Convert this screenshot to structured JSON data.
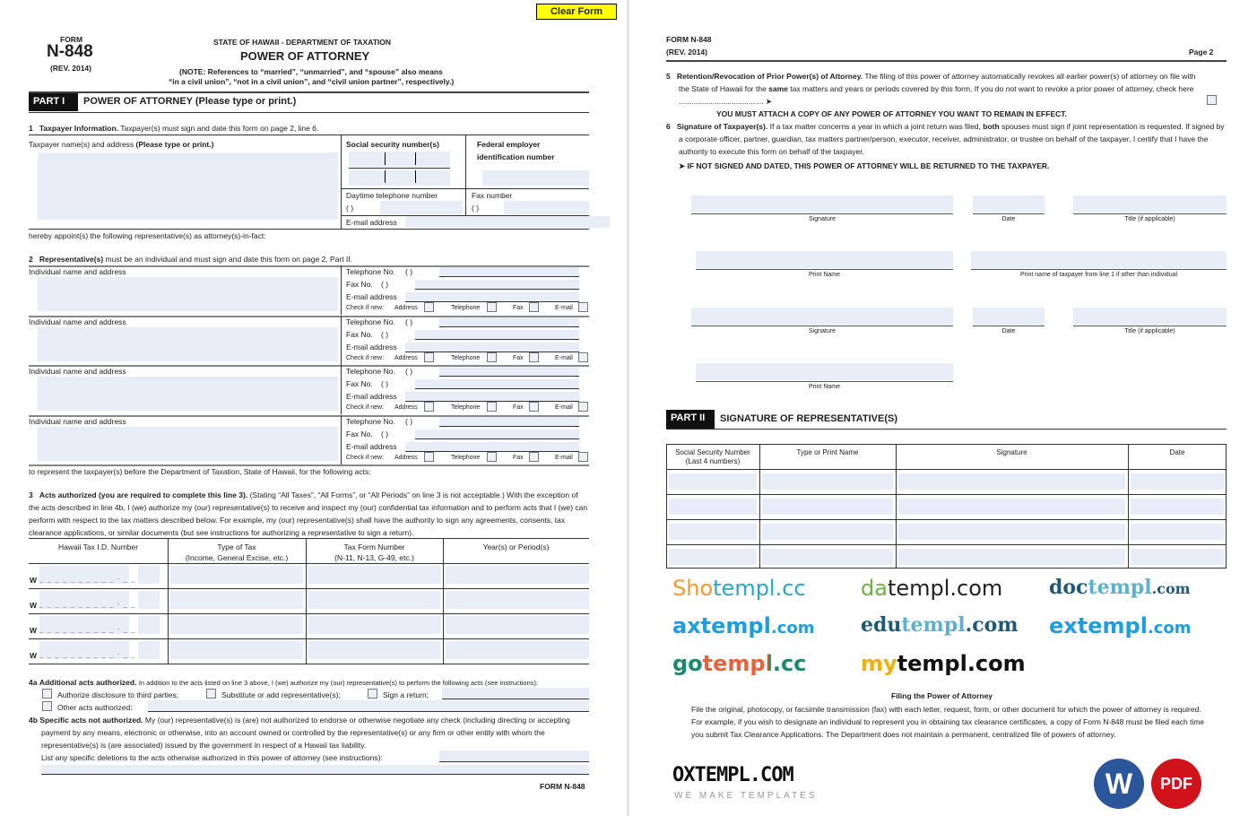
{
  "clear_form_label": "Clear Form",
  "page1": {
    "form_label": "FORM",
    "form_number": "N-848",
    "rev": "(REV. 2014)",
    "agency": "STATE OF HAWAII - DEPARTMENT OF TAXATION",
    "title": "POWER OF ATTORNEY",
    "note_line1": "(NOTE: References to “married”, “unmarried”, and “spouse” also means",
    "note_line2": "“in a civil union”, “not in a civil union”, and “civil union partner”, respectively.)",
    "part1_tag": "PART I",
    "part1_title": "POWER OF ATTORNEY (Please type or print.)",
    "line1_num": "1",
    "line1_bold": "Taxpayer Information.",
    "line1_text": "Taxpayer(s) must sign and date this form on page 2, line 6.",
    "taxpayer_name_label": "Taxpayer name(s) and address",
    "taxpayer_name_bold": "(Please type or print.)",
    "ssn_label": "Social security number(s)",
    "fein_label_1": "Federal employer",
    "fein_label_2": "identification number",
    "phone_label": "Daytime telephone number",
    "fax_label": "Fax number",
    "email_label": "E-mail address",
    "paren": "(        )",
    "appoint_text": "hereby appoint(s) the following representative(s) as attorney(s)-in-fact:",
    "line2_num": "2",
    "line2_bold": "Representative(s)",
    "line2_text": "must be an individual and must sign and date this form on page 2, Part II.",
    "rep_labels": {
      "name": "Individual name and address",
      "tel": "Telephone No.",
      "fax": "Fax No.",
      "email": "E-mail address",
      "check": "Check if new:",
      "address": "Address",
      "telephone": "Telephone",
      "fax_cb": "Fax",
      "email_cb": "E-mail",
      "paren": "(        )"
    },
    "represent_text": "to represent the taxpayer(s) before the Department of Taxation, State of Hawaii, for the following acts:",
    "line3_num": "3",
    "line3_bold": "Acts authorized (you are required to complete this line 3).",
    "line3_text": "(Stating “All Taxes”, “All Forms”, or “All Periods” on line 3 is not acceptable.) With the exception of the acts described in line 4b, I (we) authorize my (our) representative(s) to receive and inspect my (our) confidential tax information and to perform acts that I (we) can perform with respect to the tax matters described below.  For example, my (our) representative(s) shall have the authority to sign any agreements, consents, tax clearance applications, or similar documents (but see instructions for authorizing a representative to sign a return).",
    "acts_table": {
      "headers": [
        [
          "Hawaii Tax I.D. Number",
          ""
        ],
        [
          "Type of Tax",
          "(Income, General Excise, etc.)"
        ],
        [
          "Tax Form Number",
          "(N-11, N-13, G-49, etc.)"
        ],
        [
          "Year(s) or Period(s)",
          ""
        ]
      ],
      "row_prefix": "W",
      "row_pattern": "_ _ _ _ _ _ _ _ _ _ - _ _"
    },
    "line4a_num": "4a",
    "line4a_bold": "Additional acts authorized.",
    "line4a_text": "In addition to the acts listed on line 3 above, I (we) authorize my (our) representative(s) to perform the following acts (see instructions):",
    "cb_disclosure": "Authorize disclosure to third parties;",
    "cb_substitute": "Substitute or add representative(s);",
    "cb_sign": "Sign a return;",
    "cb_other": "Other acts authorized:",
    "line4b_num": "4b",
    "line4b_bold": "Specific acts not authorized.",
    "line4b_text": "My (our) representative(s) is (are) not authorized to endorse or otherwise negotiate any check (including directing or accepting payment by any means, electronic or otherwise, into an account owned or controlled by the representative(s) or any firm or other entity with whom the representative(s) is (are associated) issued by the government in respect of a Hawaii tax liability.",
    "line4b_list": "List any specific deletions to the acts otherwise authorized in this power of attorney (see instructions):",
    "footer": "FORM N-848"
  },
  "page2": {
    "form": "FORM N-848",
    "rev": "(REV. 2014)",
    "page": "Page 2",
    "line5_num": "5",
    "line5_bold": "Retention/Revocation of Prior Power(s) of Attorney.",
    "line5_text_a": "The filing of this power of attorney automatically revokes all earlier power(s) of attorney on file with the State of Hawaii for the ",
    "line5_same": "same",
    "line5_text_b": " tax matters and years or periods covered by this form. If you do not want to revoke a prior power of attorney, check here",
    "arrow": "➤",
    "must_attach": "YOU MUST ATTACH A COPY OF ANY POWER OF ATTORNEY YOU WANT TO REMAIN IN EFFECT.",
    "line6_num": "6",
    "line6_bold": "Signature of Taxpayer(s).",
    "line6_text_a": "If a tax matter concerns a year in which a joint return was filed, ",
    "line6_both": "both",
    "line6_text_b": " spouses must sign if joint representation is requested. If signed by a corporate officer, partner, guardian, tax matters partner/person, executor, receiver, administrator, or trustee on behalf of the taxpayer, I certify that I have the authority to execute this form on behalf of the taxpayer.",
    "not_signed": "➤  IF NOT SIGNED AND DATED, THIS POWER OF ATTORNEY WILL BE RETURNED TO THE TAXPAYER.",
    "sig_labels": {
      "signature": "Signature",
      "date": "Date",
      "title": "Title (if applicable)",
      "print_name": "Print Name",
      "print_taxpayer": "Print name of taxpayer from line 1 if other than individual"
    },
    "part2_tag": "PART II",
    "part2_title": "SIGNATURE OF REPRESENTATIVE(S)",
    "rep_table_headers": [
      "Social Security Number\n(Last 4 numbers)",
      "Type or Print Name",
      "Signature",
      "Date"
    ],
    "filing_title": "Filing the Power of Attorney",
    "filing_text": "File the original, photocopy, or facsimile transmission (fax) with each letter, request, form, or other document for which the power of attorney is required. For example, if you wish to designate an individual to represent you in obtaining tax clearance certificates, a copy of Form N-848 must be filed each time you submit Tax Clearance Applications. The Department does not maintain a permanent, centralized file of powers of attorney."
  },
  "watermarks": {
    "gotempl": "gotempl.cc",
    "oxtempl": "OXTEMPL.COM",
    "oxtempl_tag": "WE MAKE TEMPLATES",
    "mytempl": "mytempl.com",
    "edutempl_a": "edu",
    "edutempl_b": "templ",
    "edutempl_c": ".com",
    "extempl_a": "extempl",
    "extempl_b": ".com",
    "shotempl_a": "Sho",
    "shotempl_b": "templ.cc",
    "datempl_a": "da",
    "datempl_b": "templ.com",
    "doctempl_a": "doc",
    "doctempl_b": "templ",
    "doctempl_c": ".com",
    "axtempl_a": "axtempl",
    "axtempl_b": ".com",
    "word_badge": "W",
    "pdf_badge": "PDF"
  },
  "colors": {
    "field": "#e9edf8",
    "clear_button": "#ffff00",
    "word": "#2b579a",
    "pdf": "#d0121b"
  }
}
